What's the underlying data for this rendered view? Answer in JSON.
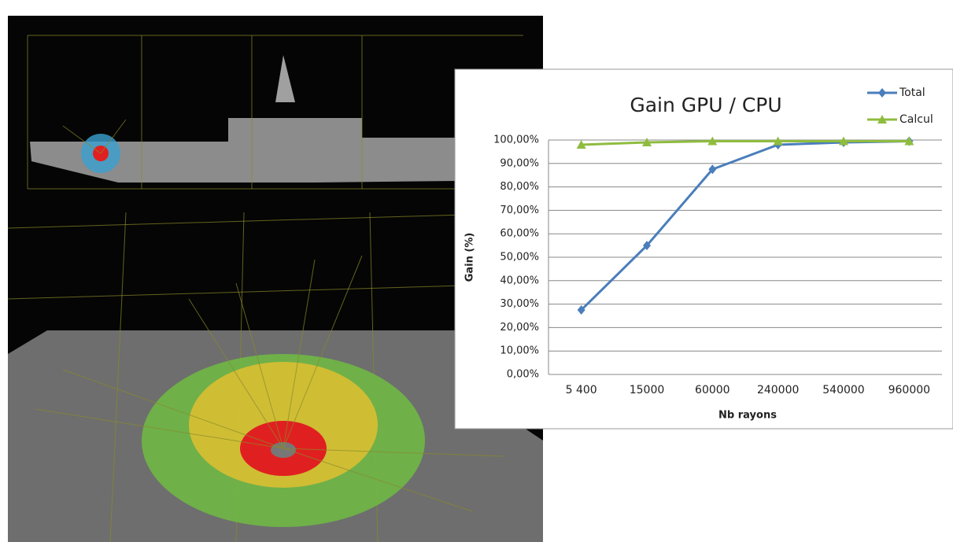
{
  "chart_data": {
    "type": "line",
    "title": "Gain GPU / CPU",
    "x_label": "Nb rayons",
    "y_label": "Gain (%)",
    "categories": [
      "5 400",
      "15000",
      "60000",
      "240000",
      "540000",
      "960000"
    ],
    "series": [
      {
        "name": "Total",
        "color": "#4a7ebb",
        "marker": "diamond",
        "values": [
          27.5,
          55,
          87.5,
          98,
          99,
          99.5
        ]
      },
      {
        "name": "Calcul",
        "color": "#8fbc3f",
        "marker": "triangle",
        "values": [
          98,
          99,
          99.5,
          99.5,
          99.5,
          99.5
        ]
      }
    ],
    "ylim": [
      0,
      100
    ],
    "yticks": [
      {
        "value": 0,
        "label": "0,00%"
      },
      {
        "value": 10,
        "label": "10,00%"
      },
      {
        "value": 20,
        "label": "20,00%"
      },
      {
        "value": 30,
        "label": "30,00%"
      },
      {
        "value": 40,
        "label": "40,00%"
      },
      {
        "value": 50,
        "label": "50,00%"
      },
      {
        "value": 60,
        "label": "60,00%"
      },
      {
        "value": 70,
        "label": "70,00%"
      },
      {
        "value": 80,
        "label": "80,00%"
      },
      {
        "value": 90,
        "label": "90,00%"
      },
      {
        "value": 100,
        "label": "100,00%"
      }
    ],
    "grid": true,
    "legend": "top-right"
  }
}
